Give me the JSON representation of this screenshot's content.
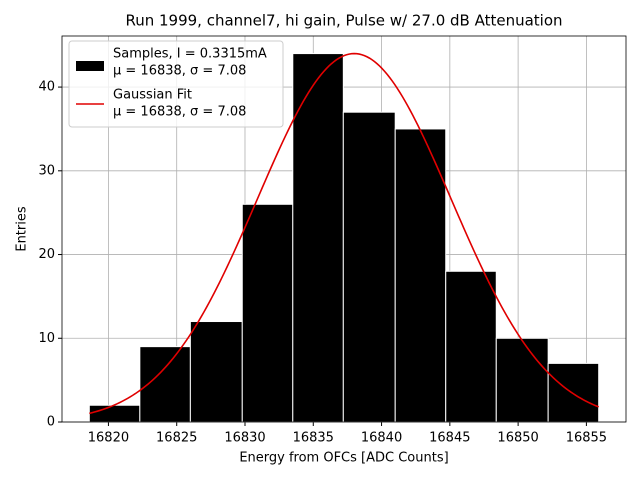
{
  "chart_data": {
    "type": "histogram",
    "title": "Run 1999, channel7, hi gain, Pulse w/ 27.0 dB Attenuation",
    "xlabel": "Energy from OFCs [ADC Counts]",
    "ylabel": "Entries",
    "bins": [
      16818.6,
      16822.3,
      16826.0,
      16829.8,
      16833.5,
      16837.2,
      16841.0,
      16844.7,
      16848.4,
      16852.2,
      16855.9
    ],
    "values": [
      2,
      9,
      12,
      26,
      44,
      37,
      35,
      18,
      10,
      7
    ],
    "color": "#000000",
    "name": [
      "Samples, I = 0.3315mA",
      "μ = 16838, σ = 7.08"
    ],
    "fit": {
      "name": [
        "Gaussian Fit",
        "μ = 16838, σ = 7.08"
      ],
      "color": "#e00000",
      "amplitude": 44,
      "mean": 16838,
      "sigma": 7.08
    },
    "xlim": [
      16816.6,
      16857.9
    ],
    "ylim": [
      0,
      46.1
    ],
    "xticks": [
      16820,
      16825,
      16830,
      16835,
      16840,
      16845,
      16850,
      16855
    ],
    "yticks": [
      0,
      10,
      20,
      30,
      40
    ],
    "grid": true,
    "legend": "upper left"
  }
}
